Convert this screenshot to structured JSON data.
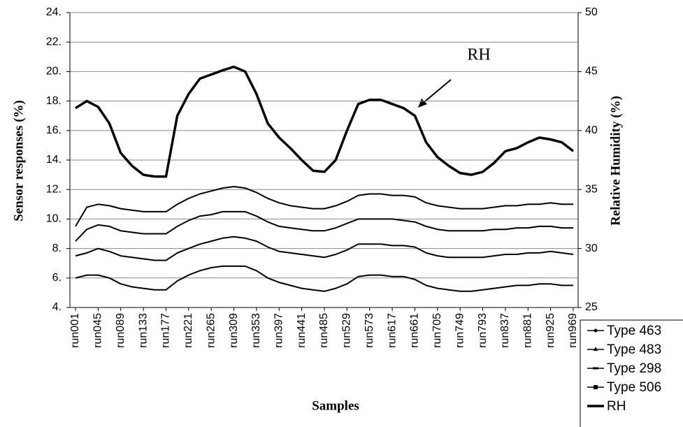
{
  "chart_data": {
    "type": "line",
    "x_label": "Samples",
    "y_label": "Sensor responses (%)",
    "y2_label": "Relative Humidity (%)",
    "annotation": "RH",
    "categories": [
      "run001",
      null,
      "run045",
      null,
      "run089",
      null,
      "run133",
      null,
      "run177",
      null,
      "run221",
      null,
      "run265",
      null,
      "run309",
      null,
      "run353",
      null,
      "run397",
      null,
      "run441",
      null,
      "run485",
      null,
      "run529",
      null,
      "run573",
      null,
      "run617",
      null,
      "run661",
      null,
      "run705",
      null,
      "run749",
      null,
      "run793",
      null,
      "run837",
      null,
      "run881",
      null,
      "run925",
      null,
      "run969"
    ],
    "ylim": [
      4,
      24
    ],
    "yticks": [
      {
        "value": 4,
        "label": "4."
      },
      {
        "value": 6,
        "label": "6."
      },
      {
        "value": 8,
        "label": "8."
      },
      {
        "value": 10,
        "label": "10."
      },
      {
        "value": 12,
        "label": "12."
      },
      {
        "value": 14,
        "label": "14."
      },
      {
        "value": 16,
        "label": "16."
      },
      {
        "value": 18,
        "label": "18."
      },
      {
        "value": 20,
        "label": "20."
      },
      {
        "value": 22,
        "label": "22."
      },
      {
        "value": 24,
        "label": "24."
      }
    ],
    "y2lim": [
      25,
      50
    ],
    "y2ticks": [
      25,
      30,
      35,
      40,
      45,
      50
    ],
    "grid": true,
    "legend": "bottom-right",
    "series": [
      {
        "name": "Type 463",
        "color": "#000000",
        "marker": "dot",
        "values": [
          9.5,
          10.8,
          11.0,
          10.9,
          10.7,
          10.6,
          10.5,
          10.5,
          10.5,
          11.0,
          11.4,
          11.7,
          11.9,
          12.1,
          12.2,
          12.1,
          11.8,
          11.4,
          11.1,
          10.9,
          10.8,
          10.7,
          10.7,
          10.9,
          11.2,
          11.6,
          11.7,
          11.7,
          11.6,
          11.6,
          11.5,
          11.1,
          10.9,
          10.8,
          10.7,
          10.7,
          10.7,
          10.8,
          10.9,
          10.9,
          11.0,
          11.0,
          11.1,
          11.0,
          11.0
        ]
      },
      {
        "name": "Type 483",
        "color": "#000000",
        "marker": "triangle",
        "values": [
          8.5,
          9.3,
          9.6,
          9.5,
          9.2,
          9.1,
          9.0,
          9.0,
          9.0,
          9.5,
          9.9,
          10.2,
          10.3,
          10.5,
          10.5,
          10.5,
          10.2,
          9.8,
          9.5,
          9.4,
          9.3,
          9.2,
          9.2,
          9.4,
          9.7,
          10.0,
          10.0,
          10.0,
          10.0,
          9.9,
          9.8,
          9.5,
          9.3,
          9.2,
          9.2,
          9.2,
          9.2,
          9.3,
          9.3,
          9.4,
          9.4,
          9.5,
          9.5,
          9.4,
          9.4
        ]
      },
      {
        "name": "Type 298",
        "color": "#000000",
        "marker": "dash",
        "values": [
          7.5,
          7.7,
          8.0,
          7.8,
          7.5,
          7.4,
          7.3,
          7.2,
          7.2,
          7.7,
          8.0,
          8.3,
          8.5,
          8.7,
          8.8,
          8.7,
          8.5,
          8.1,
          7.8,
          7.7,
          7.6,
          7.5,
          7.4,
          7.6,
          7.9,
          8.3,
          8.3,
          8.3,
          8.2,
          8.2,
          8.1,
          7.7,
          7.5,
          7.4,
          7.4,
          7.4,
          7.4,
          7.5,
          7.6,
          7.6,
          7.7,
          7.7,
          7.8,
          7.7,
          7.6
        ]
      },
      {
        "name": "Type 506",
        "color": "#000000",
        "marker": "square",
        "values": [
          6.0,
          6.2,
          6.2,
          6.0,
          5.6,
          5.4,
          5.3,
          5.2,
          5.2,
          5.8,
          6.2,
          6.5,
          6.7,
          6.8,
          6.8,
          6.8,
          6.5,
          6.0,
          5.7,
          5.5,
          5.3,
          5.2,
          5.1,
          5.3,
          5.6,
          6.1,
          6.2,
          6.2,
          6.1,
          6.1,
          5.9,
          5.5,
          5.3,
          5.2,
          5.1,
          5.1,
          5.2,
          5.3,
          5.4,
          5.5,
          5.5,
          5.6,
          5.6,
          5.5,
          5.5
        ]
      },
      {
        "name": "RH",
        "color": "#000000",
        "axis": "y2",
        "width": 3.5,
        "values": [
          41.9,
          42.5,
          42.0,
          40.6,
          38.1,
          37.0,
          36.25,
          36.1,
          36.1,
          41.25,
          43.1,
          44.4,
          44.75,
          45.1,
          45.4,
          45.0,
          43.1,
          40.6,
          39.4,
          38.5,
          37.5,
          36.6,
          36.5,
          37.5,
          40,
          42.25,
          42.6,
          42.6,
          42.25,
          41.9,
          41.25,
          39.0,
          37.75,
          37.0,
          36.4,
          36.25,
          36.5,
          37.25,
          38.25,
          38.5,
          39.0,
          39.4,
          39.25,
          39.0,
          38.25
        ]
      }
    ]
  }
}
